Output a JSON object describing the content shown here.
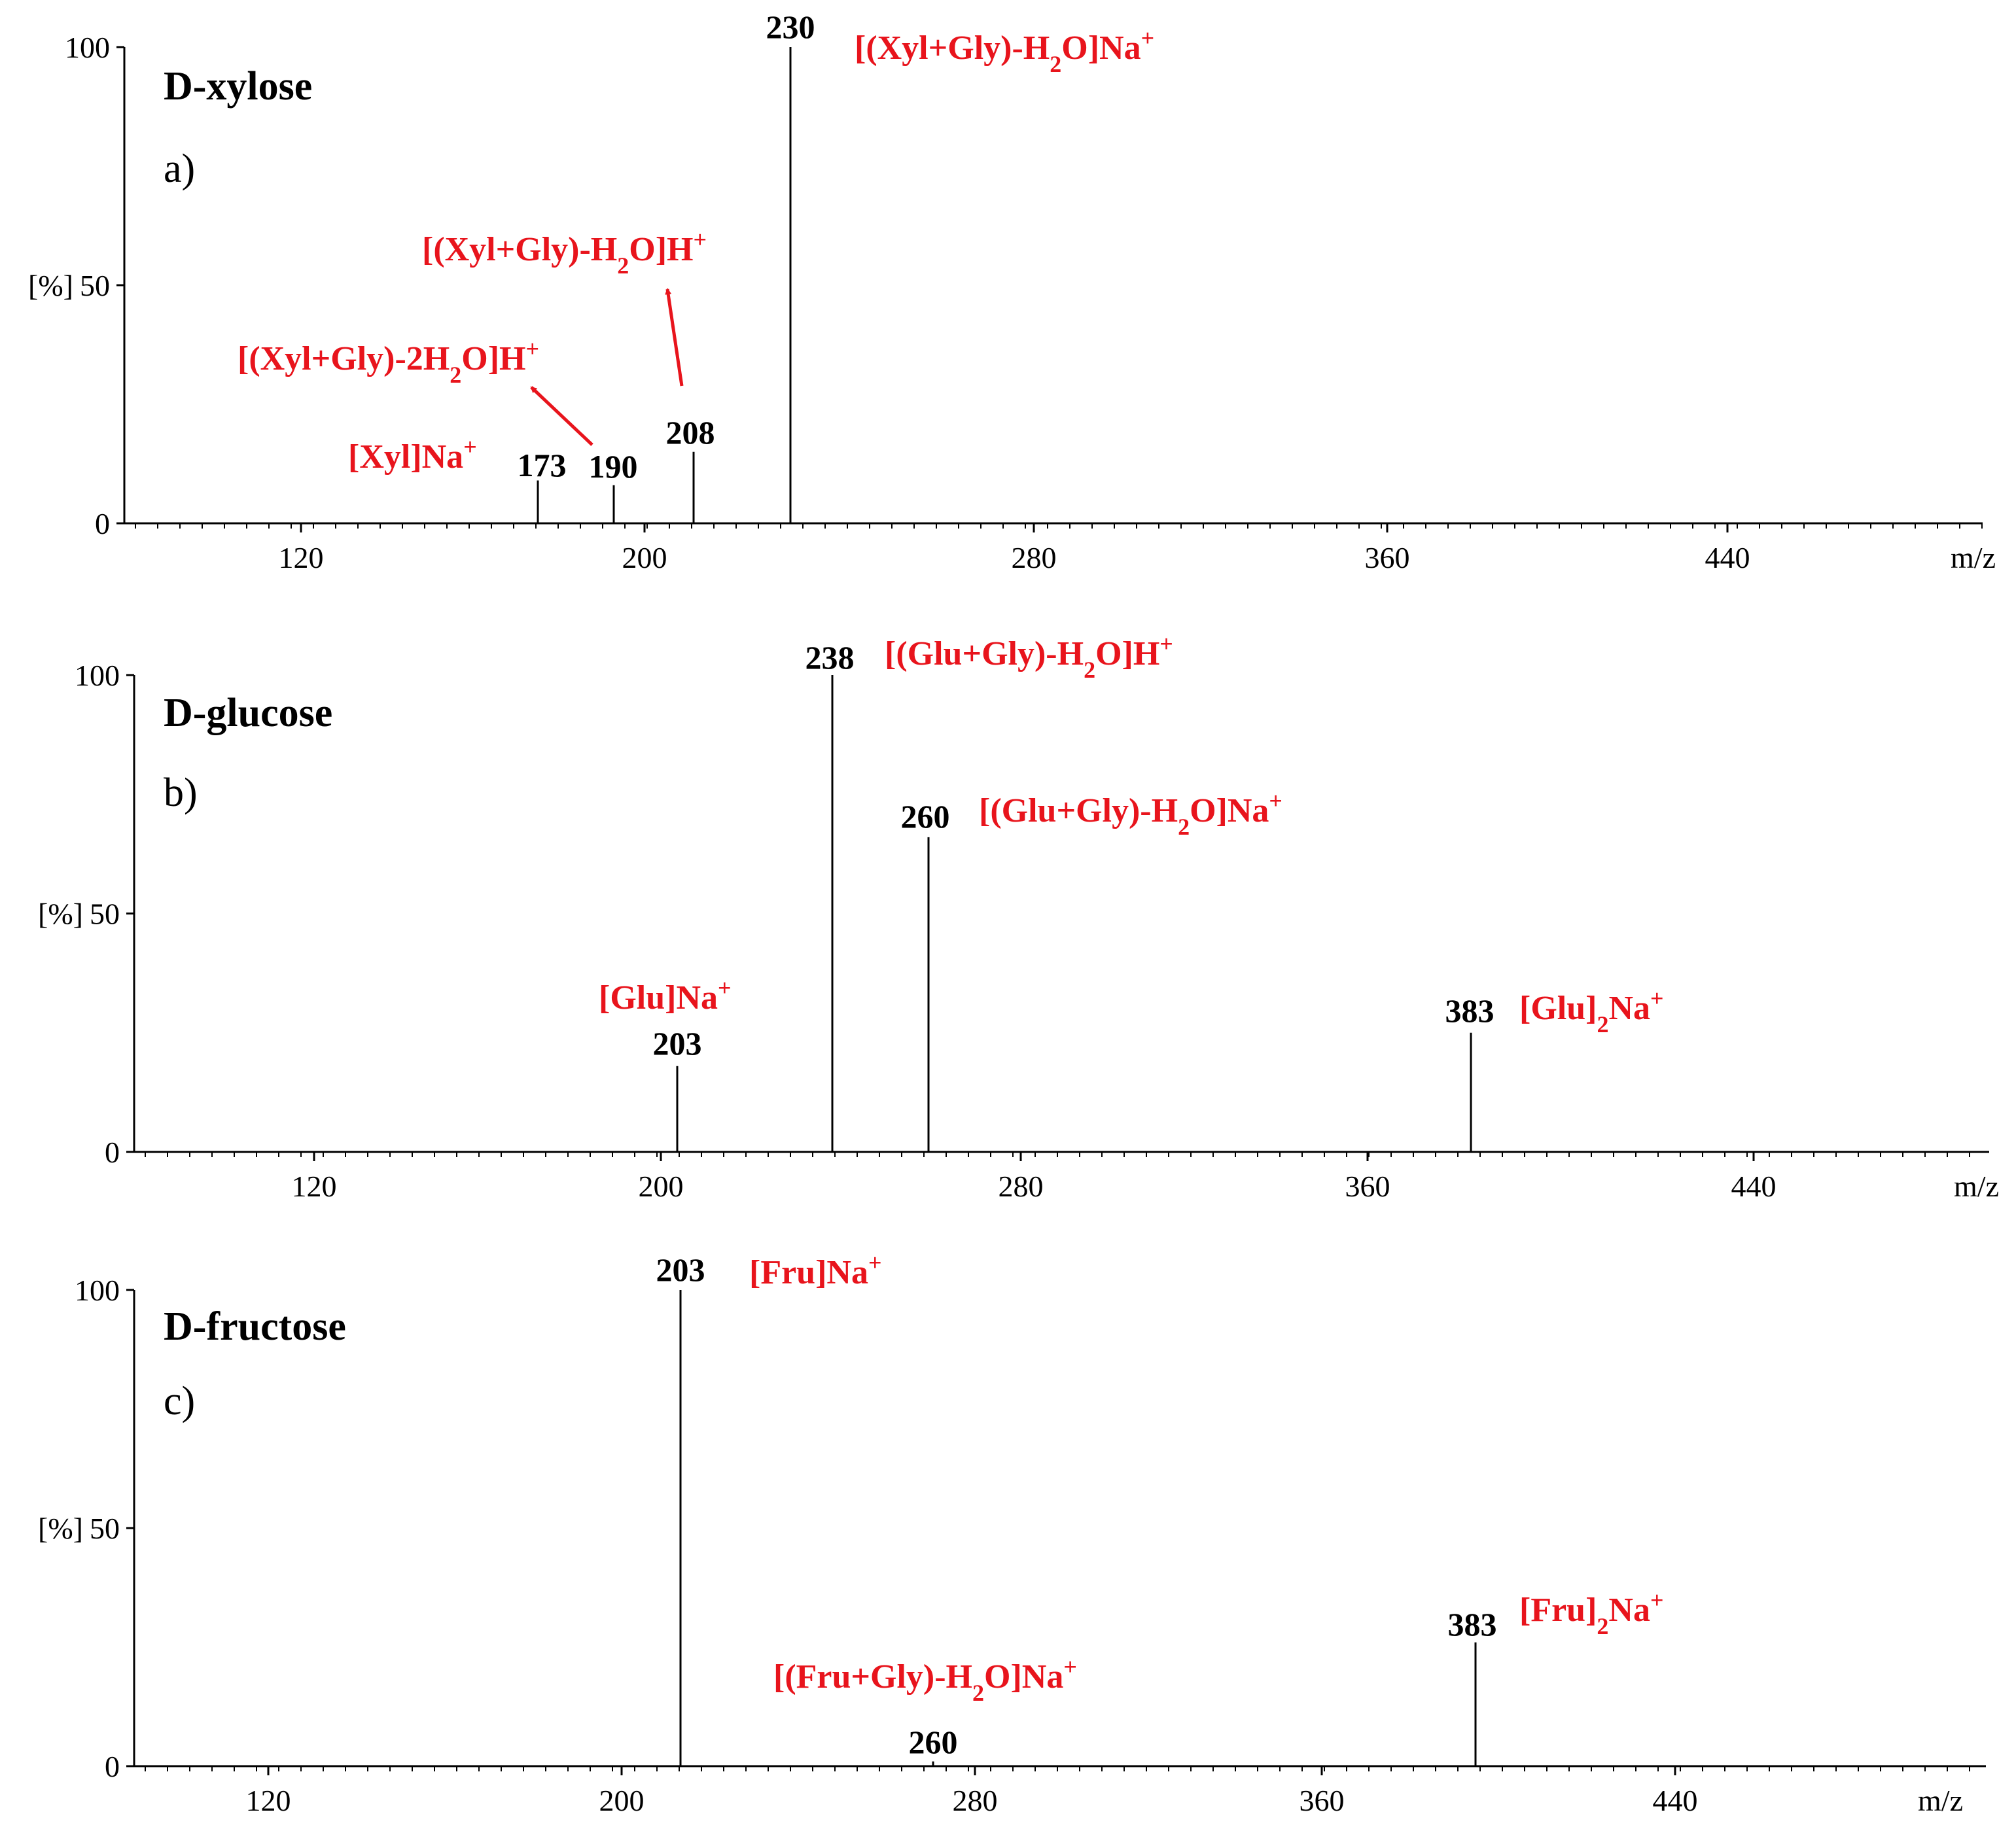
{
  "colors": {
    "annotation": "#e8141c",
    "ink": "#000000"
  },
  "chart_data": [
    {
      "type": "bar",
      "title": "D-xylose",
      "subtitle": "a)",
      "xlabel": "m/z",
      "ylabel": "[%]",
      "xlim": [
        80,
        400
      ],
      "ylim": [
        0,
        100
      ],
      "xticks": [
        "120",
        "200",
        "280",
        "360",
        "440"
      ],
      "yticks": [
        "0",
        "50",
        "100"
      ],
      "peaks": [
        {
          "x": 173,
          "y": 9,
          "label": "173"
        },
        {
          "x": 190,
          "y": 8,
          "label": "190"
        },
        {
          "x": 208,
          "y": 15,
          "label": "208"
        },
        {
          "x": 230,
          "y": 100,
          "label": "230"
        }
      ],
      "ions": [
        {
          "text": "[Xyl]Na",
          "sup": "+"
        },
        {
          "text": "[(Xyl+Gly)-2H",
          "sub": "2",
          "rest": "O]H",
          "sup": "+"
        },
        {
          "text": "[(Xyl+Gly)-H",
          "sub": "2",
          "rest": "O]H",
          "sup": "+"
        },
        {
          "text": "[(Xyl+Gly)-H",
          "sub": "2",
          "rest": "O]Na",
          "sup": "+"
        }
      ]
    },
    {
      "type": "bar",
      "title": "D-glucose",
      "subtitle": "b)",
      "xlabel": "m/z",
      "ylabel": "[%]",
      "xlim": [
        80,
        400
      ],
      "ylim": [
        0,
        100
      ],
      "xticks": [
        "120",
        "200",
        "280",
        "360",
        "440"
      ],
      "yticks": [
        "0",
        "50",
        "100"
      ],
      "peaks": [
        {
          "x": 203,
          "y": 18,
          "label": "203"
        },
        {
          "x": 238,
          "y": 100,
          "label": "238"
        },
        {
          "x": 260,
          "y": 66,
          "label": "260"
        },
        {
          "x": 383,
          "y": 25,
          "label": "383"
        }
      ],
      "ions": [
        {
          "text": "[Glu]Na",
          "sup": "+"
        },
        {
          "text": "[(Glu+Gly)-H",
          "sub": "2",
          "rest": "O]H",
          "sup": "+"
        },
        {
          "text": "[(Glu+Gly)-H",
          "sub": "2",
          "rest": "O]Na",
          "sup": "+"
        },
        {
          "text": "[Glu]",
          "sub": "2",
          "rest": "Na",
          "sup": "+"
        }
      ]
    },
    {
      "type": "bar",
      "title": "D-fructose",
      "subtitle": "c)",
      "xlabel": "m/z",
      "ylabel": "[%]",
      "xlim": [
        80,
        400
      ],
      "ylim": [
        0,
        100
      ],
      "xticks": [
        "120",
        "200",
        "280",
        "360",
        "440"
      ],
      "yticks": [
        "0",
        "50",
        "100"
      ],
      "peaks": [
        {
          "x": 203,
          "y": 100,
          "label": "203"
        },
        {
          "x": 260,
          "y": 1,
          "label": "260"
        },
        {
          "x": 383,
          "y": 26,
          "label": "383"
        }
      ],
      "ions": [
        {
          "text": "[Fru]Na",
          "sup": "+"
        },
        {
          "text": "[(Fru+Gly)-H",
          "sub": "2",
          "rest": "O]Na",
          "sup": "+"
        },
        {
          "text": "[Fru]",
          "sub": "2",
          "rest": "Na",
          "sup": "+"
        }
      ]
    }
  ]
}
